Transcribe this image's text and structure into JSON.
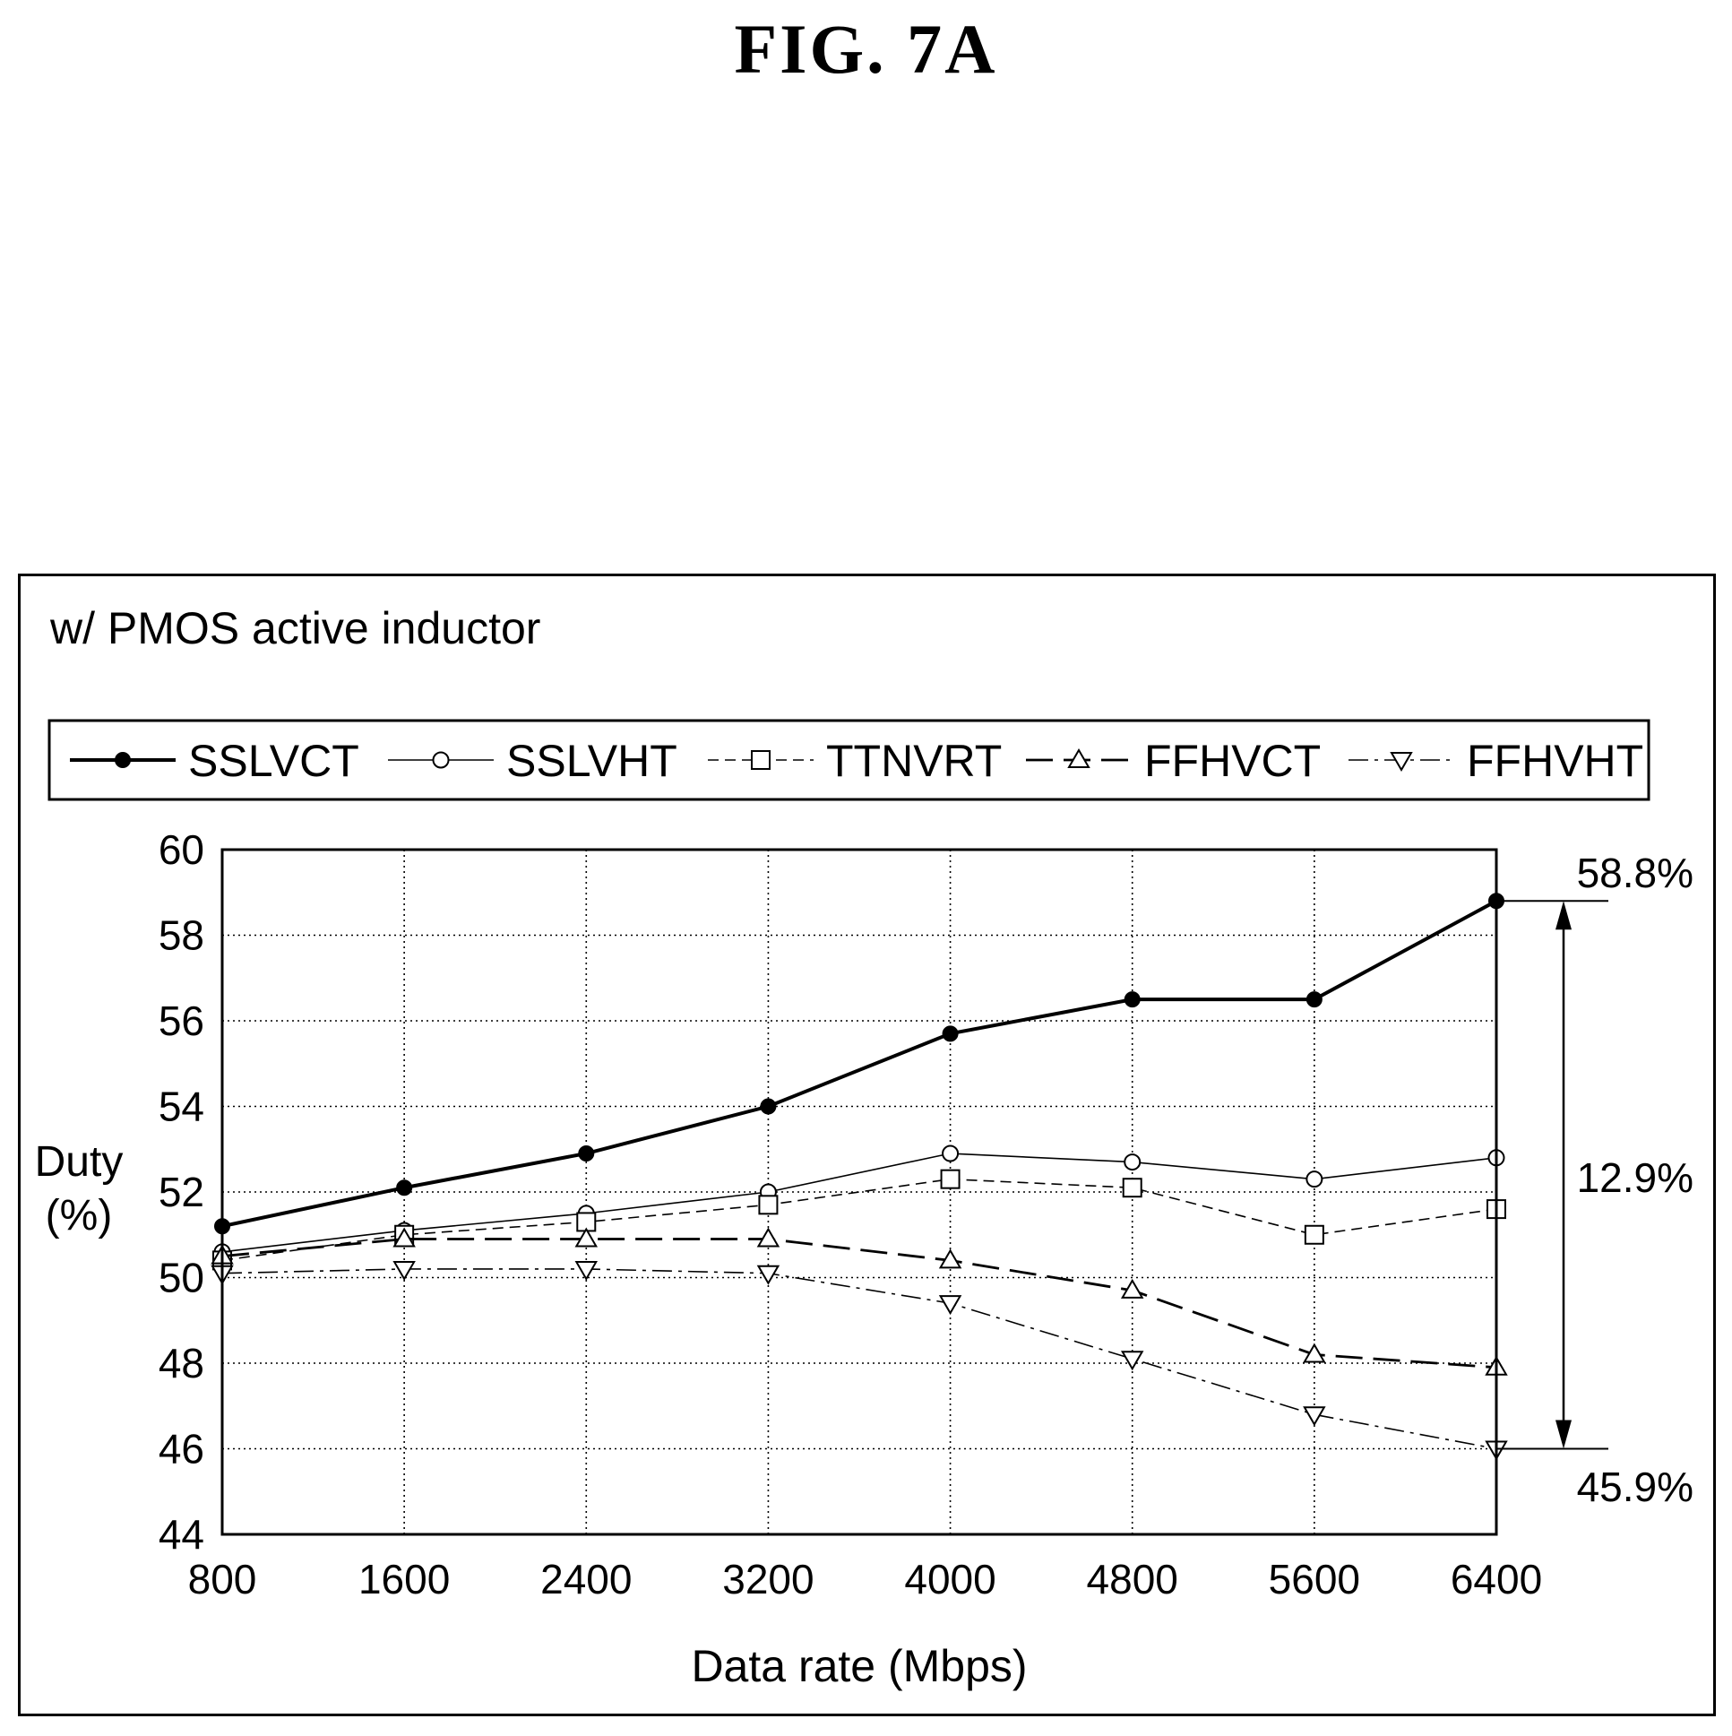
{
  "figure_label": "FIG. 7A",
  "subtitle": "w/ PMOS active inductor",
  "chart_data": {
    "type": "line",
    "xlabel": "Data rate (Mbps)",
    "ylabel": "Duty (%)",
    "ylabel_lines": [
      "Duty",
      "(%)"
    ],
    "x": [
      800,
      1600,
      2400,
      3200,
      4000,
      4800,
      5600,
      6400
    ],
    "xlim": [
      800,
      6400
    ],
    "ylim": [
      44,
      60
    ],
    "yticks": [
      44,
      46,
      48,
      50,
      52,
      54,
      56,
      58,
      60
    ],
    "grid": true,
    "legend_position": "top",
    "series": [
      {
        "name": "SSLVCT",
        "marker": "filled-circle",
        "line": "solid-thick",
        "values": [
          51.2,
          52.1,
          52.9,
          54.0,
          55.7,
          56.5,
          56.5,
          58.8
        ]
      },
      {
        "name": "SSLVHT",
        "marker": "open-circle",
        "line": "solid-thin",
        "values": [
          50.6,
          51.1,
          51.5,
          52.0,
          52.9,
          52.7,
          52.3,
          52.8
        ]
      },
      {
        "name": "TTNVRT",
        "marker": "open-square",
        "line": "dashed-short",
        "values": [
          50.4,
          51.0,
          51.3,
          51.7,
          52.3,
          52.1,
          51.0,
          51.6
        ]
      },
      {
        "name": "FFHVCT",
        "marker": "triangle-up",
        "line": "dashed-long",
        "values": [
          50.5,
          50.9,
          50.9,
          50.9,
          50.4,
          49.7,
          48.2,
          47.9
        ]
      },
      {
        "name": "FFHVHT",
        "marker": "triangle-down",
        "line": "dash-dot",
        "values": [
          50.1,
          50.2,
          50.2,
          50.1,
          49.4,
          48.1,
          46.8,
          46.0
        ]
      }
    ],
    "annotations": {
      "max_label": "58.8%",
      "min_label": "45.9%",
      "range_label": "12.9%",
      "max_value": 58.8,
      "min_value": 46.0
    }
  }
}
